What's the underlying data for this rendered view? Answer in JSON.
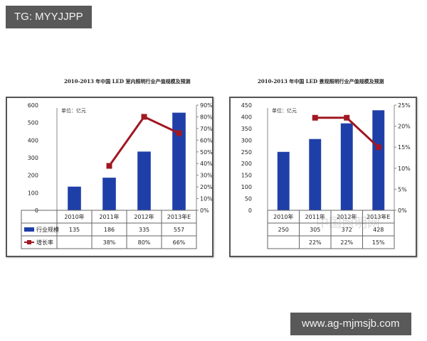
{
  "watermarks": {
    "top_left": "TG: MYYJJPP",
    "bottom_right": "www.ag-mjmsjb.com",
    "overlay_text": "中国照明网"
  },
  "chart_data": [
    {
      "type": "bar+line",
      "title": "2010-2013 年中国 LED 室内照明行业产值规模及预测",
      "unit_label": "单位：亿元",
      "categories": [
        "2010年",
        "2011年",
        "2012年",
        "2013年E"
      ],
      "series": [
        {
          "name": "行业规模",
          "type": "bar",
          "axis": "left",
          "color": "#1f3fa8",
          "values": [
            135,
            186,
            335,
            557
          ],
          "labels": [
            "135",
            "186",
            "335",
            "557"
          ]
        },
        {
          "name": "增长率",
          "type": "line",
          "axis": "right",
          "color": "#a01822",
          "values": [
            null,
            38,
            80,
            66
          ],
          "labels": [
            "",
            "38%",
            "80%",
            "66%"
          ]
        }
      ],
      "left_axis": {
        "min": 0,
        "max": 600,
        "ticks": [
          "0",
          "100",
          "200",
          "300",
          "400",
          "500",
          "600"
        ]
      },
      "right_axis": {
        "min": 0,
        "max": 90,
        "ticks": [
          "0%",
          "10%",
          "20%",
          "30%",
          "40%",
          "50%",
          "60%",
          "70%",
          "80%",
          "90%"
        ]
      },
      "legend_position": "data-table-below"
    },
    {
      "type": "bar+line",
      "title": "2010-2013 年中国 LED 景观照明行业产值规模及预测",
      "unit_label": "单位：亿元",
      "categories": [
        "2010年",
        "2011年",
        "2012年",
        "2013年E"
      ],
      "series": [
        {
          "name": "行业规模",
          "type": "bar",
          "axis": "left",
          "color": "#1f3fa8",
          "values": [
            250,
            305,
            372,
            428
          ],
          "labels": [
            "250",
            "305",
            "372",
            "428"
          ]
        },
        {
          "name": "增长率",
          "type": "line",
          "axis": "right",
          "color": "#a01822",
          "values": [
            null,
            22,
            22,
            15
          ],
          "labels": [
            "",
            "22%",
            "22%",
            "15%"
          ]
        }
      ],
      "left_axis": {
        "min": 0,
        "max": 450,
        "ticks": [
          "0",
          "50",
          "100",
          "150",
          "200",
          "250",
          "300",
          "350",
          "400",
          "450"
        ]
      },
      "right_axis": {
        "min": 0,
        "max": 25,
        "ticks": [
          "0%",
          "5%",
          "10%",
          "15%",
          "20%",
          "25%"
        ]
      },
      "legend_position": "data-table-below"
    }
  ]
}
